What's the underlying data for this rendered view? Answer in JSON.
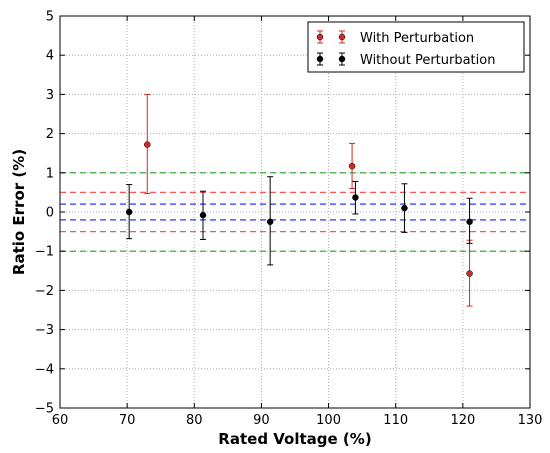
{
  "chart_data": {
    "type": "scatter",
    "title": "",
    "xlabel": "Rated Voltage (%)",
    "ylabel": "Ratio Error (%)",
    "xlim": [
      60,
      130
    ],
    "ylim": [
      -5,
      5
    ],
    "xticks": [
      60,
      70,
      80,
      90,
      100,
      110,
      120,
      130
    ],
    "yticks": [
      -5,
      -4,
      -3,
      -2,
      -1,
      0,
      1,
      2,
      3,
      4,
      5
    ],
    "xtick_labels": [
      "60",
      "70",
      "80",
      "90",
      "100",
      "110",
      "120",
      "130"
    ],
    "ytick_labels": [
      "−5",
      "−4",
      "−3",
      "−2",
      "−1",
      "0",
      "1",
      "2",
      "3",
      "4",
      "5"
    ],
    "grid": true,
    "legend_position": "top-right",
    "series": [
      {
        "name": "With Perturbation",
        "color": "#d62728",
        "points": [
          {
            "x": 73.0,
            "y": 1.72,
            "low": 0.47,
            "high": 3.0
          },
          {
            "x": 103.5,
            "y": 1.17,
            "low": 0.6,
            "high": 1.75
          },
          {
            "x": 121.0,
            "y": -1.57,
            "low": -2.4,
            "high": -0.72
          }
        ]
      },
      {
        "name": "Without Perturbation",
        "color": "#000000",
        "points": [
          {
            "x": 70.3,
            "y": 0.0,
            "low": -0.68,
            "high": 0.7
          },
          {
            "x": 81.3,
            "y": -0.08,
            "low": -0.7,
            "high": 0.53
          },
          {
            "x": 91.3,
            "y": -0.25,
            "low": -1.35,
            "high": 0.9
          },
          {
            "x": 104.0,
            "y": 0.37,
            "low": -0.05,
            "high": 0.78
          },
          {
            "x": 111.3,
            "y": 0.1,
            "low": -0.52,
            "high": 0.72
          },
          {
            "x": 121.0,
            "y": -0.25,
            "low": -0.8,
            "high": 0.35
          }
        ]
      }
    ],
    "reference_lines": [
      {
        "y": 1.0,
        "color": "#2ca02c"
      },
      {
        "y": -1.0,
        "color": "#2ca02c"
      },
      {
        "y": 0.5,
        "color": "#ff5555"
      },
      {
        "y": -0.5,
        "color": "#ff5555"
      },
      {
        "y": 0.2,
        "color": "#3333ff"
      },
      {
        "y": -0.2,
        "color": "#3333ff"
      }
    ]
  }
}
